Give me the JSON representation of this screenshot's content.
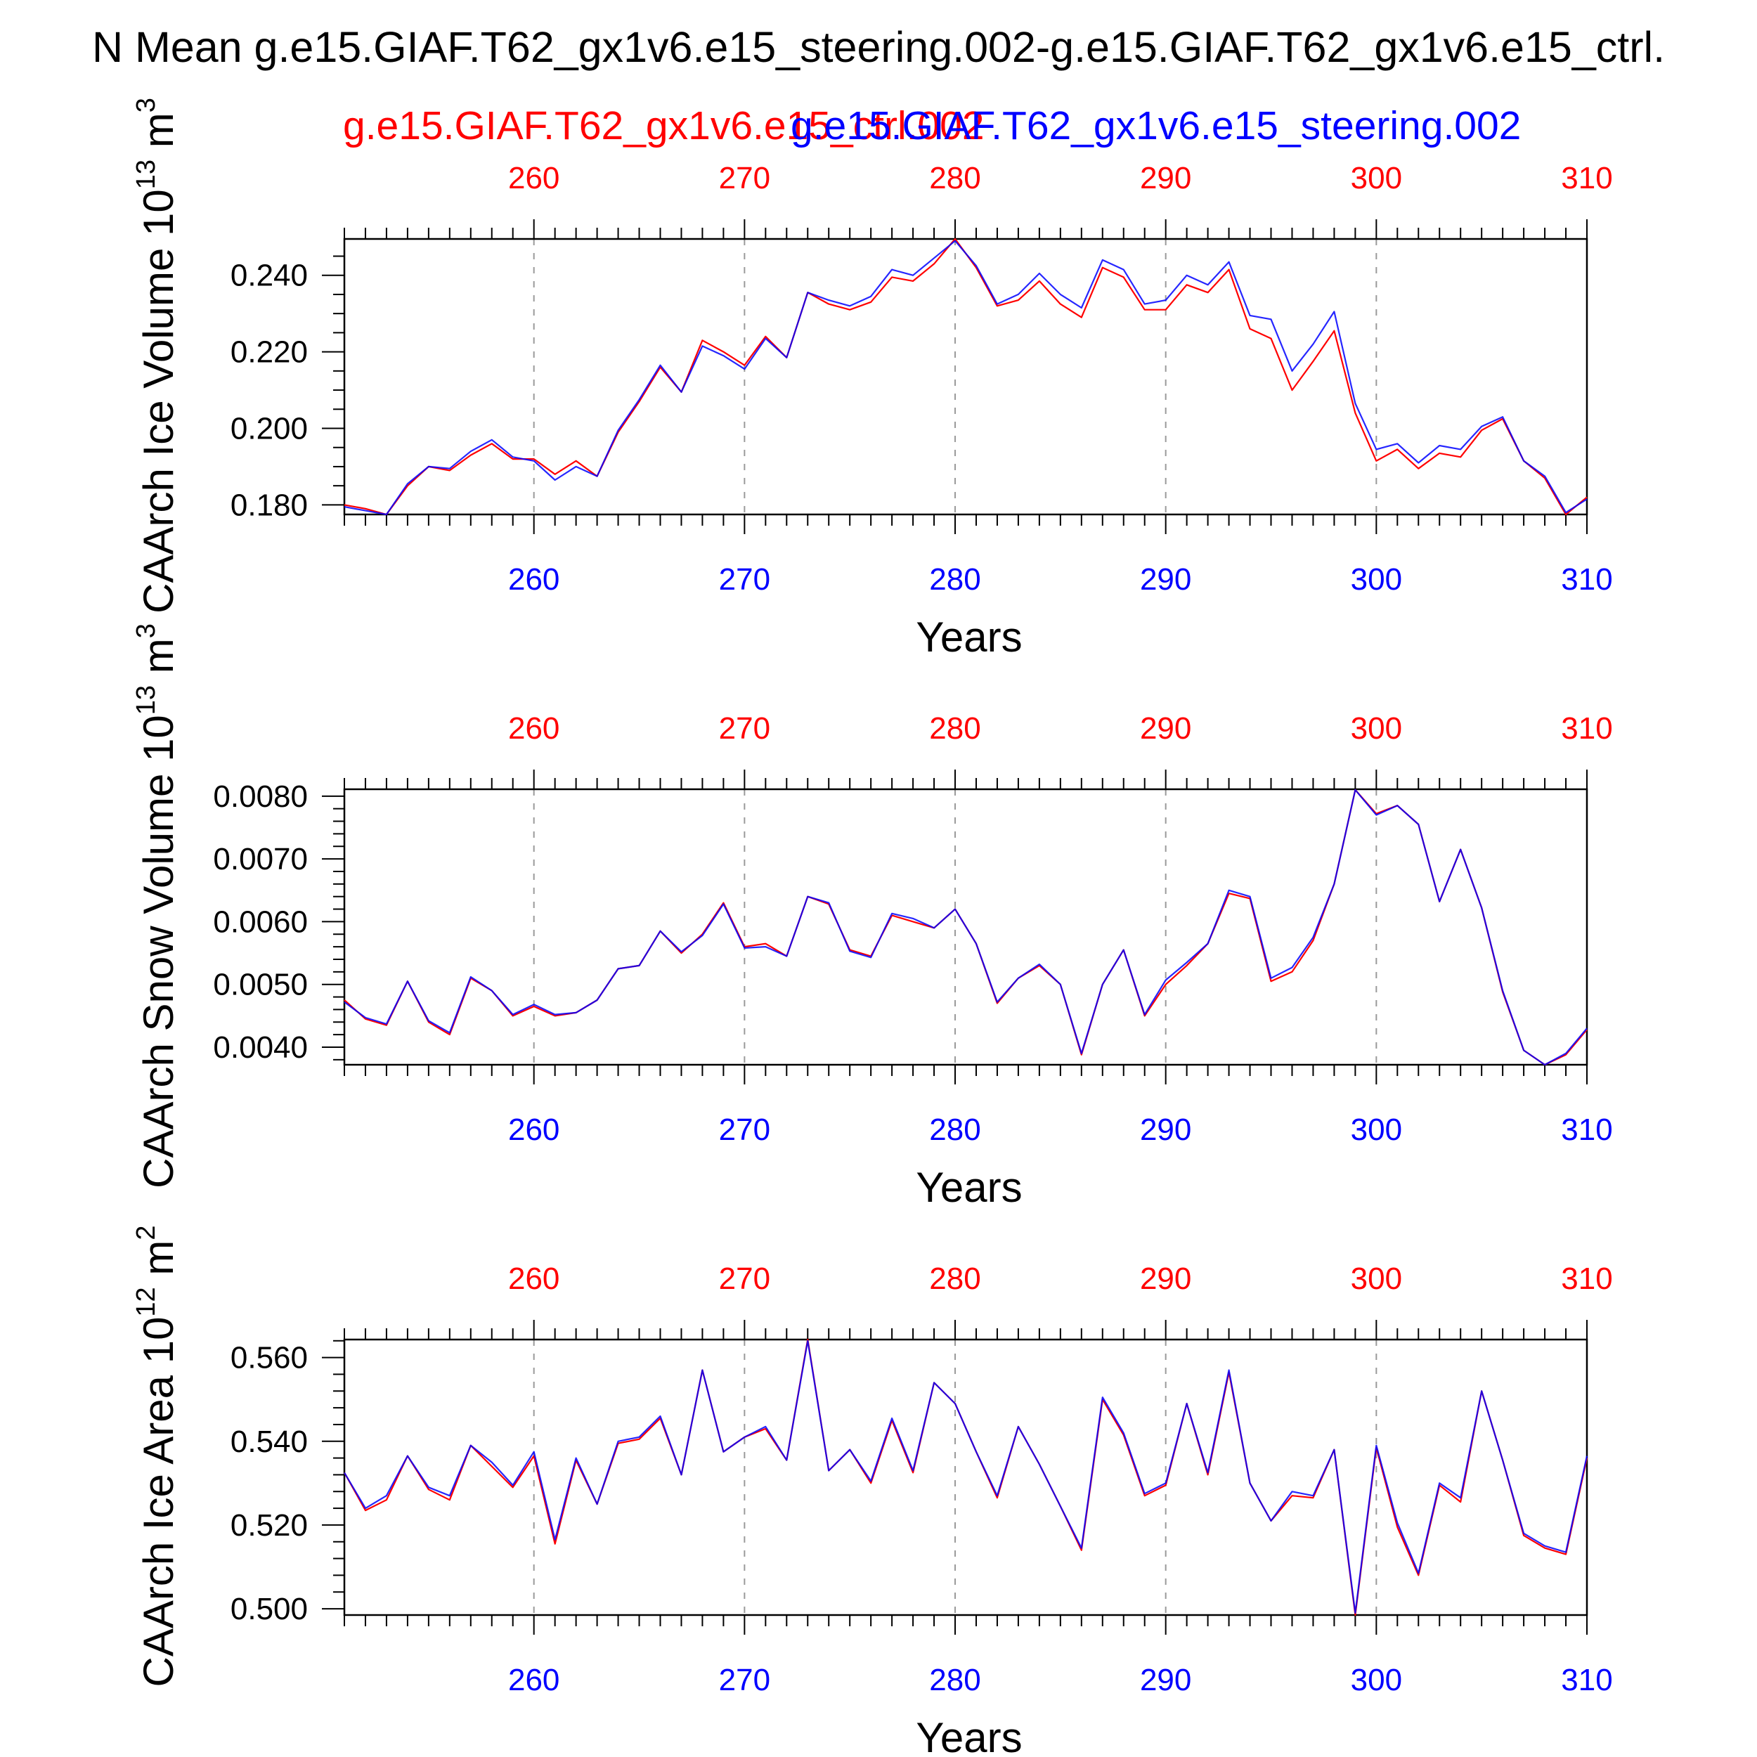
{
  "title": "N Mean g.e15.GIAF.T62_gx1v6.e15_steering.002-g.e15.GIAF.T62_gx1v6.e15_ctrl.",
  "legend": {
    "ctrl_label": "g.e15.GIAF.T62_gx1v6.e15_ctrl.002",
    "steering_label": "g.e15.GIAF.T62_gx1v6.e15_steering.002"
  },
  "colors": {
    "ctrl": "#ff0000",
    "steering": "#0000ff",
    "text": "#000000",
    "grid": "#9a9a9a"
  },
  "chart_data": [
    {
      "type": "line",
      "ylabel": "CAArch Ice Volume 10",
      "ylabel_exp": "13",
      "ylabel_unit": "m",
      "ylabel_unit_exp": "3",
      "xlabel": "Years",
      "xlim": [
        251,
        310
      ],
      "ylim": [
        0.1775,
        0.2495
      ],
      "xticks": [
        260,
        270,
        280,
        290,
        300,
        310
      ],
      "yticks": [
        0.18,
        0.2,
        0.22,
        0.24
      ],
      "ytick_labels": [
        "0.180",
        "0.200",
        "0.220",
        "0.240"
      ],
      "ymin_step": 0.005,
      "grid": "vertical dashed at major x ticks",
      "x": [
        251,
        252,
        253,
        254,
        255,
        256,
        257,
        258,
        259,
        260,
        261,
        262,
        263,
        264,
        265,
        266,
        267,
        268,
        269,
        270,
        271,
        272,
        273,
        274,
        275,
        276,
        277,
        278,
        279,
        280,
        281,
        282,
        283,
        284,
        285,
        286,
        287,
        288,
        289,
        290,
        291,
        292,
        293,
        294,
        295,
        296,
        297,
        298,
        299,
        300,
        301,
        302,
        303,
        304,
        305,
        306,
        307,
        308,
        309,
        310
      ],
      "series": [
        {
          "name": "g.e15.GIAF.T62_gx1v6.e15_ctrl.002",
          "color": "#ff0000",
          "values": [
            0.18,
            0.179,
            0.1775,
            0.185,
            0.19,
            0.189,
            0.193,
            0.196,
            0.192,
            0.192,
            0.188,
            0.1915,
            0.1875,
            0.199,
            0.207,
            0.216,
            0.2095,
            0.223,
            0.22,
            0.2165,
            0.224,
            0.2185,
            0.2355,
            0.2325,
            0.231,
            0.233,
            0.2395,
            0.2385,
            0.243,
            0.2495,
            0.242,
            0.232,
            0.2335,
            0.2385,
            0.2325,
            0.229,
            0.242,
            0.2395,
            0.231,
            0.231,
            0.2375,
            0.2355,
            0.2415,
            0.226,
            0.2235,
            0.21,
            0.2175,
            0.2255,
            0.204,
            0.1915,
            0.1945,
            0.1895,
            0.1935,
            0.1925,
            0.1995,
            0.2025,
            0.1915,
            0.187,
            0.1775,
            0.182
          ]
        },
        {
          "name": "g.e15.GIAF.T62_gx1v6.e15_steering.002",
          "color": "#0000ff",
          "values": [
            0.1795,
            0.1785,
            0.1775,
            0.1855,
            0.19,
            0.1895,
            0.194,
            0.197,
            0.1925,
            0.1915,
            0.1865,
            0.19,
            0.1875,
            0.1995,
            0.2075,
            0.2165,
            0.2095,
            0.2215,
            0.219,
            0.2155,
            0.2235,
            0.2185,
            0.2355,
            0.2335,
            0.232,
            0.2345,
            0.2415,
            0.24,
            0.2445,
            0.249,
            0.2425,
            0.2325,
            0.235,
            0.2405,
            0.235,
            0.2315,
            0.244,
            0.2415,
            0.2325,
            0.2335,
            0.24,
            0.2375,
            0.2435,
            0.2295,
            0.2285,
            0.215,
            0.222,
            0.2305,
            0.2065,
            0.1945,
            0.196,
            0.191,
            0.1955,
            0.1945,
            0.2005,
            0.203,
            0.1915,
            0.1875,
            0.178,
            0.1815
          ]
        }
      ]
    },
    {
      "type": "line",
      "ylabel": "CAArch Snow Volume 10",
      "ylabel_exp": "13",
      "ylabel_unit": "m",
      "ylabel_unit_exp": "3",
      "xlabel": "Years",
      "xlim": [
        251,
        310
      ],
      "ylim": [
        0.00372,
        0.00811
      ],
      "xticks": [
        260,
        270,
        280,
        290,
        300,
        310
      ],
      "yticks": [
        0.004,
        0.005,
        0.006,
        0.007,
        0.008
      ],
      "ytick_labels": [
        "0.0040",
        "0.0050",
        "0.0060",
        "0.0070",
        "0.0080"
      ],
      "ymin_step": 0.0002,
      "grid": "vertical dashed at major x ticks",
      "x": [
        251,
        252,
        253,
        254,
        255,
        256,
        257,
        258,
        259,
        260,
        261,
        262,
        263,
        264,
        265,
        266,
        267,
        268,
        269,
        270,
        271,
        272,
        273,
        274,
        275,
        276,
        277,
        278,
        279,
        280,
        281,
        282,
        283,
        284,
        285,
        286,
        287,
        288,
        289,
        290,
        291,
        292,
        293,
        294,
        295,
        296,
        297,
        298,
        299,
        300,
        301,
        302,
        303,
        304,
        305,
        306,
        307,
        308,
        309,
        310
      ],
      "series": [
        {
          "name": "g.e15.GIAF.T62_gx1v6.e15_ctrl.002",
          "color": "#ff0000",
          "values": [
            0.00475,
            0.00445,
            0.00435,
            0.00505,
            0.0044,
            0.0042,
            0.0051,
            0.0049,
            0.0045,
            0.00465,
            0.0045,
            0.00455,
            0.00475,
            0.00525,
            0.0053,
            0.00585,
            0.0055,
            0.0058,
            0.0063,
            0.0056,
            0.00565,
            0.00545,
            0.0064,
            0.00628,
            0.00555,
            0.00545,
            0.0061,
            0.006,
            0.0059,
            0.0062,
            0.00565,
            0.0047,
            0.0051,
            0.0053,
            0.005,
            0.00388,
            0.005,
            0.00555,
            0.0045,
            0.005,
            0.0053,
            0.00565,
            0.00645,
            0.00637,
            0.00505,
            0.0052,
            0.0057,
            0.0066,
            0.0081,
            0.00772,
            0.00785,
            0.00755,
            0.00632,
            0.00715,
            0.00622,
            0.00488,
            0.00395,
            0.00372,
            0.00388,
            0.00428
          ]
        },
        {
          "name": "g.e15.GIAF.T62_gx1v6.e15_steering.002",
          "color": "#0000ff",
          "values": [
            0.00472,
            0.00447,
            0.00437,
            0.00505,
            0.00442,
            0.00423,
            0.00512,
            0.0049,
            0.00452,
            0.00468,
            0.00452,
            0.00455,
            0.00475,
            0.00525,
            0.0053,
            0.00585,
            0.00552,
            0.00578,
            0.00628,
            0.00558,
            0.0056,
            0.00545,
            0.0064,
            0.0063,
            0.00553,
            0.00543,
            0.00613,
            0.00605,
            0.0059,
            0.0062,
            0.00565,
            0.00472,
            0.0051,
            0.00532,
            0.005,
            0.0039,
            0.005,
            0.00555,
            0.00452,
            0.00507,
            0.00535,
            0.00565,
            0.0065,
            0.0064,
            0.0051,
            0.00527,
            0.00575,
            0.0066,
            0.0081,
            0.0077,
            0.00785,
            0.00755,
            0.00632,
            0.00715,
            0.00622,
            0.0049,
            0.00395,
            0.00372,
            0.0039,
            0.0043
          ]
        }
      ]
    },
    {
      "type": "line",
      "ylabel": "CAArch Ice Area 10",
      "ylabel_exp": "12",
      "ylabel_unit": "m",
      "ylabel_unit_exp": "2",
      "xlabel": "Years",
      "xlim": [
        251,
        310
      ],
      "ylim": [
        0.4985,
        0.5643
      ],
      "xticks": [
        260,
        270,
        280,
        290,
        300,
        310
      ],
      "yticks": [
        0.5,
        0.52,
        0.54,
        0.56
      ],
      "ytick_labels": [
        "0.500",
        "0.520",
        "0.540",
        "0.560"
      ],
      "ymin_step": 0.004,
      "grid": "vertical dashed at major x ticks",
      "x": [
        251,
        252,
        253,
        254,
        255,
        256,
        257,
        258,
        259,
        260,
        261,
        262,
        263,
        264,
        265,
        266,
        267,
        268,
        269,
        270,
        271,
        272,
        273,
        274,
        275,
        276,
        277,
        278,
        279,
        280,
        281,
        282,
        283,
        284,
        285,
        286,
        287,
        288,
        289,
        290,
        291,
        292,
        293,
        294,
        295,
        296,
        297,
        298,
        299,
        300,
        301,
        302,
        303,
        304,
        305,
        306,
        307,
        308,
        309,
        310
      ],
      "series": [
        {
          "name": "g.e15.GIAF.T62_gx1v6.e15_ctrl.002",
          "color": "#ff0000",
          "values": [
            0.5325,
            0.5235,
            0.526,
            0.5365,
            0.5285,
            0.526,
            0.539,
            0.534,
            0.529,
            0.5365,
            0.5155,
            0.5355,
            0.525,
            0.5395,
            0.5405,
            0.5455,
            0.532,
            0.557,
            0.5375,
            0.541,
            0.543,
            0.5355,
            0.5643,
            0.533,
            0.538,
            0.53,
            0.545,
            0.5325,
            0.554,
            0.549,
            0.5375,
            0.5265,
            0.5435,
            0.5345,
            0.5245,
            0.514,
            0.55,
            0.5415,
            0.527,
            0.5295,
            0.549,
            0.532,
            0.5565,
            0.53,
            0.521,
            0.527,
            0.5265,
            0.538,
            0.4985,
            0.5385,
            0.5195,
            0.508,
            0.5295,
            0.5255,
            0.552,
            0.5355,
            0.5175,
            0.5145,
            0.513,
            0.536
          ]
        },
        {
          "name": "g.e15.GIAF.T62_gx1v6.e15_steering.002",
          "color": "#0000ff",
          "values": [
            0.5325,
            0.524,
            0.527,
            0.5365,
            0.529,
            0.527,
            0.539,
            0.535,
            0.5295,
            0.5375,
            0.5165,
            0.536,
            0.525,
            0.54,
            0.541,
            0.546,
            0.532,
            0.557,
            0.5375,
            0.541,
            0.5435,
            0.5355,
            0.564,
            0.533,
            0.538,
            0.5305,
            0.5455,
            0.533,
            0.554,
            0.549,
            0.5375,
            0.527,
            0.5435,
            0.5345,
            0.5245,
            0.5145,
            0.5505,
            0.542,
            0.5275,
            0.53,
            0.549,
            0.5325,
            0.557,
            0.53,
            0.521,
            0.528,
            0.527,
            0.538,
            0.499,
            0.539,
            0.5205,
            0.5085,
            0.53,
            0.5265,
            0.552,
            0.5355,
            0.518,
            0.515,
            0.5135,
            0.5365
          ]
        }
      ]
    }
  ]
}
